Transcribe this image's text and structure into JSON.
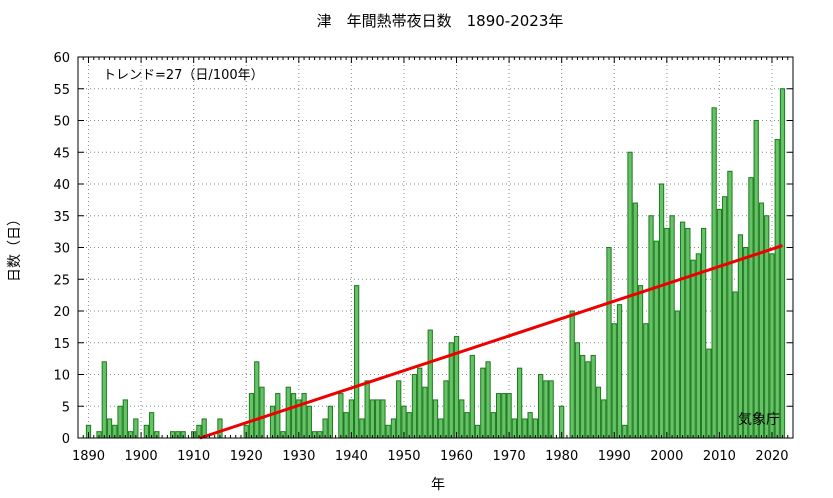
{
  "chart_data": {
    "type": "bar",
    "title": "津　年間熱帯夜日数　1890-2023年",
    "xlabel": "年",
    "ylabel": "日数（日）",
    "trend_label": "トレンド=27（日/100年）",
    "source_label": "気象庁",
    "xlim": [
      1888,
      2024
    ],
    "ylim": [
      0,
      60
    ],
    "x_ticks": [
      1890,
      1900,
      1910,
      1920,
      1930,
      1940,
      1950,
      1960,
      1970,
      1980,
      1990,
      2000,
      2010,
      2020
    ],
    "y_ticks": [
      0,
      5,
      10,
      15,
      20,
      25,
      30,
      35,
      40,
      45,
      50,
      55,
      60
    ],
    "grid": true,
    "bar_color": "#66c266",
    "bar_edge_color": "#1e7a1e",
    "trend_color": "#ee0000",
    "years": [
      1890,
      1891,
      1892,
      1893,
      1894,
      1895,
      1896,
      1897,
      1898,
      1899,
      1900,
      1901,
      1902,
      1903,
      1904,
      1905,
      1906,
      1907,
      1908,
      1909,
      1910,
      1911,
      1912,
      1913,
      1914,
      1915,
      1916,
      1917,
      1918,
      1919,
      1920,
      1921,
      1922,
      1923,
      1924,
      1925,
      1926,
      1927,
      1928,
      1929,
      1930,
      1931,
      1932,
      1933,
      1934,
      1935,
      1936,
      1937,
      1938,
      1939,
      1940,
      1941,
      1942,
      1943,
      1944,
      1945,
      1946,
      1947,
      1948,
      1949,
      1950,
      1951,
      1952,
      1953,
      1954,
      1955,
      1956,
      1957,
      1958,
      1959,
      1960,
      1961,
      1962,
      1963,
      1964,
      1965,
      1966,
      1967,
      1968,
      1969,
      1970,
      1971,
      1972,
      1973,
      1974,
      1975,
      1976,
      1977,
      1978,
      1979,
      1980,
      1981,
      1982,
      1983,
      1984,
      1985,
      1986,
      1987,
      1988,
      1989,
      1990,
      1991,
      1992,
      1993,
      1994,
      1995,
      1996,
      1997,
      1998,
      1999,
      2000,
      2001,
      2002,
      2003,
      2004,
      2005,
      2006,
      2007,
      2008,
      2009,
      2010,
      2011,
      2012,
      2013,
      2014,
      2015,
      2016,
      2017,
      2018,
      2019,
      2020,
      2021,
      2022,
      2023
    ],
    "values": [
      2,
      0,
      1,
      12,
      3,
      2,
      5,
      6,
      1,
      3,
      0,
      2,
      4,
      1,
      0,
      0,
      1,
      1,
      1,
      0,
      1,
      2,
      3,
      0,
      0,
      3,
      0,
      0,
      0,
      0,
      2,
      7,
      12,
      8,
      0,
      5,
      7,
      1,
      8,
      7,
      6,
      7,
      5,
      1,
      1,
      3,
      5,
      0,
      7,
      4,
      6,
      24,
      3,
      9,
      6,
      6,
      6,
      2,
      3,
      9,
      5,
      4,
      10,
      11,
      8,
      17,
      6,
      3,
      9,
      15,
      16,
      6,
      4,
      13,
      2,
      11,
      12,
      4,
      7,
      7,
      7,
      3,
      11,
      3,
      4,
      3,
      10,
      9,
      9,
      0,
      5,
      0,
      20,
      15,
      13,
      12,
      13,
      8,
      6,
      30,
      18,
      21,
      2,
      45,
      37,
      24,
      18,
      35,
      31,
      40,
      33,
      35,
      20,
      34,
      33,
      28,
      29,
      33,
      14,
      52,
      36,
      38,
      42,
      23,
      32,
      30,
      41,
      50,
      37,
      35,
      29,
      47,
      55,
      0
    ],
    "trend": {
      "x": [
        1911.2,
        2022
      ],
      "y": [
        0,
        30.3
      ]
    }
  }
}
